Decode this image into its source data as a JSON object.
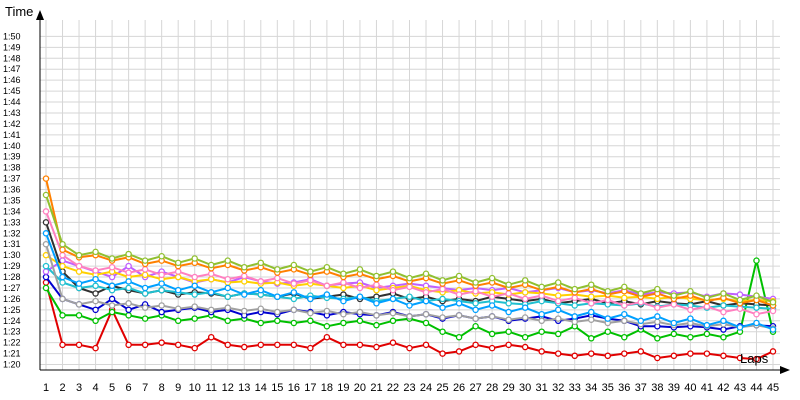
{
  "chart_data": {
    "type": "line",
    "ylabel": "Time",
    "xlabel": "Laps",
    "x_categories": [
      "1",
      "2",
      "3",
      "4",
      "5",
      "6",
      "7",
      "8",
      "9",
      "10",
      "11",
      "12",
      "13",
      "14",
      "15",
      "16",
      "17",
      "18",
      "19",
      "20",
      "21",
      "22",
      "23",
      "24",
      "25",
      "26",
      "27",
      "28",
      "29",
      "30",
      "31",
      "32",
      "33",
      "34",
      "35",
      "36",
      "37",
      "38",
      "39",
      "40",
      "41",
      "42",
      "43",
      "44",
      "45"
    ],
    "y_tick_labels": [
      "1:20",
      "1:21",
      "1:22",
      "1:23",
      "1:24",
      "1:25",
      "1:26",
      "1:27",
      "1:28",
      "1:29",
      "1:30",
      "1:31",
      "1:32",
      "1:33",
      "1:34",
      "1:35",
      "1:36",
      "1:37",
      "1:38",
      "1:39",
      "1:40",
      "1:41",
      "1:42",
      "1:43",
      "1:44",
      "1:45",
      "1:46",
      "1:47",
      "1:48",
      "1:49",
      "1:50"
    ],
    "y_unit": "seconds",
    "ylim": [
      79.5,
      111.5
    ],
    "xlim": [
      1,
      45
    ],
    "grid": true,
    "legend": "none",
    "series": [
      {
        "color": "#e00000",
        "values": [
          87.5,
          81.8,
          81.8,
          81.5,
          85,
          81.8,
          81.8,
          82,
          81.8,
          81.5,
          82.5,
          81.8,
          81.6,
          81.8,
          81.8,
          81.8,
          81.5,
          82.5,
          81.8,
          81.8,
          81.6,
          82,
          81.5,
          81.8,
          81,
          81.2,
          81.8,
          81.5,
          81.8,
          81.6,
          81.2,
          81,
          80.8,
          81,
          80.8,
          81,
          81.2,
          80.6,
          80.8,
          81,
          81,
          80.8,
          80.6,
          80.5,
          81.2
        ]
      },
      {
        "color": "#00c000",
        "values": [
          87,
          84.5,
          84.5,
          84,
          84.8,
          84.5,
          84.2,
          84.5,
          84,
          84.2,
          84.5,
          84,
          84.2,
          83.8,
          84,
          83.8,
          84,
          83.5,
          83.8,
          84,
          83.6,
          84,
          84.2,
          83.8,
          83,
          82.5,
          83.5,
          82.8,
          83,
          82.5,
          83,
          82.8,
          83.5,
          82.4,
          83,
          82.5,
          83.2,
          82.4,
          82.8,
          82.5,
          82.8,
          82.5,
          83,
          89.5,
          83
        ]
      },
      {
        "color": "#0000d0",
        "values": [
          88,
          86,
          85.5,
          85,
          86,
          85,
          85.5,
          84.8,
          85,
          85.2,
          84.8,
          85,
          84.5,
          84.8,
          84.6,
          85,
          84.8,
          84.5,
          84.8,
          84.6,
          84.5,
          84.8,
          84.4,
          84.6,
          84.2,
          84.5,
          84.2,
          84.4,
          84,
          84.2,
          84.4,
          84,
          84.2,
          84.5,
          84.2,
          84,
          83.5,
          83.5,
          83.4,
          83.5,
          83.4,
          83.2,
          83.5,
          83.6,
          83.5
        ]
      },
      {
        "color": "#c060ff",
        "values": [
          88.5,
          89.5,
          89,
          88.5,
          88,
          89,
          88,
          88.5,
          88,
          87.5,
          87.8,
          87.5,
          88,
          87.6,
          87.4,
          87.5,
          87.8,
          87.2,
          87.4,
          87.5,
          87,
          87.2,
          87.4,
          87.2,
          87,
          86.8,
          87,
          86.8,
          87,
          86.6,
          86.8,
          87,
          86.6,
          86.8,
          86.5,
          86.8,
          86.4,
          86.6,
          86.5,
          86.6,
          86.2,
          86.5,
          86.4,
          86.2,
          86
        ]
      },
      {
        "color": "#303030",
        "values": [
          93,
          88.5,
          87,
          86.5,
          87.2,
          86.8,
          86.5,
          86.8,
          86.4,
          86.6,
          86.5,
          86.2,
          86.5,
          86.4,
          86.2,
          86.5,
          86,
          86.2,
          86.4,
          86,
          86.2,
          86.5,
          86,
          86.2,
          85.8,
          86,
          85.8,
          86.2,
          86,
          85.8,
          86,
          85.6,
          85.8,
          86,
          85.6,
          85.8,
          85.5,
          85.8,
          85.6,
          85.5,
          85.8,
          85.4,
          85.6,
          85.5,
          85.4
        ]
      },
      {
        "color": "#20c0d0",
        "values": [
          89,
          87.5,
          87,
          87.2,
          86.8,
          87,
          86.5,
          86.8,
          86.6,
          86.4,
          86.6,
          86.2,
          86.5,
          86.4,
          86.2,
          86,
          86.3,
          86.1,
          86,
          86.2,
          85.8,
          86,
          86.2,
          85.8,
          86,
          85.8,
          85.6,
          85.8,
          85.6,
          85.5,
          85.8,
          85.6,
          85.4,
          85.6,
          85.5,
          85.4,
          85.6,
          85.3,
          85.5,
          85.4,
          85.2,
          85.4,
          85.3,
          85.2,
          85.1
        ]
      },
      {
        "color": "#ffd000",
        "values": [
          90,
          89,
          88.5,
          88.2,
          88.5,
          88,
          88.2,
          87.8,
          88,
          87.6,
          87.8,
          87.5,
          87.6,
          87.4,
          87.5,
          87.2,
          87.4,
          87.2,
          87,
          87.2,
          86.8,
          87,
          87.2,
          86.8,
          86.6,
          86.8,
          86.5,
          86.6,
          86.4,
          86.6,
          86.5,
          86.3,
          86.4,
          86.2,
          86.3,
          86.1,
          86.2,
          86,
          86.2,
          86,
          85.9,
          86,
          85.8,
          85.9,
          85.8
        ]
      },
      {
        "color": "#a0a0a0",
        "values": [
          91,
          86,
          85.5,
          85.8,
          85.4,
          85.6,
          85.2,
          85.4,
          85.1,
          85.3,
          85,
          85.2,
          84.9,
          85.1,
          84.8,
          85,
          84.7,
          84.9,
          84.6,
          84.8,
          84.5,
          84.7,
          84.4,
          84.6,
          84.3,
          84.5,
          84.2,
          84.4,
          84.1,
          84.3,
          84,
          84.2,
          83.9,
          84.1,
          83.8,
          84,
          83.7,
          83.9,
          83.6,
          83.8,
          83.5,
          83.7,
          83.4,
          83.6,
          83.3
        ]
      },
      {
        "color": "#ff80c0",
        "values": [
          94,
          90,
          89,
          88.6,
          88.9,
          88.4,
          88.7,
          88.2,
          88.5,
          88,
          88.3,
          87.8,
          88.1,
          87.6,
          87.9,
          87.4,
          87.7,
          87.2,
          87.5,
          87,
          87.3,
          86.8,
          87.1,
          86.6,
          86.9,
          86.4,
          86.7,
          86.2,
          86.5,
          86,
          86.3,
          85.8,
          86.1,
          85.6,
          85.9,
          85.4,
          85.7,
          85.2,
          85.5,
          85,
          85.3,
          84.8,
          85.1,
          84.6,
          84.9
        ]
      },
      {
        "color": "#00a0ff",
        "values": [
          92,
          88,
          87.4,
          87.8,
          87.2,
          87.6,
          87,
          87.4,
          86.8,
          87.2,
          86.6,
          87,
          86.4,
          86.8,
          86.2,
          86.6,
          86,
          86.4,
          85.8,
          86.2,
          85.6,
          86,
          85.4,
          85.8,
          85.2,
          85.6,
          85,
          85.4,
          84.8,
          85.2,
          84.6,
          85,
          84.4,
          84.8,
          84.2,
          84.6,
          84,
          84.4,
          83.8,
          84.2,
          83.6,
          84,
          83.4,
          83.8,
          83.2
        ]
      },
      {
        "color": "#ff8000",
        "values": [
          97,
          90.5,
          89.8,
          90,
          89.5,
          89.8,
          89.2,
          89.5,
          89,
          89.3,
          88.8,
          89.1,
          88.6,
          88.9,
          88.4,
          88.7,
          88.2,
          88.5,
          88,
          88.3,
          87.8,
          88.1,
          87.6,
          87.9,
          87.4,
          87.7,
          87.2,
          87.5,
          87,
          87.3,
          86.8,
          87.1,
          86.6,
          86.9,
          86.4,
          86.7,
          86.2,
          86.5,
          86,
          86.3,
          85.8,
          86.1,
          85.6,
          85.9,
          85.4
        ]
      },
      {
        "color": "#90c030",
        "values": [
          95.5,
          91,
          90,
          90.3,
          89.7,
          90.1,
          89.5,
          89.9,
          89.3,
          89.7,
          89.1,
          89.5,
          88.9,
          89.3,
          88.7,
          89.1,
          88.5,
          88.9,
          88.3,
          88.7,
          88.1,
          88.5,
          87.9,
          88.3,
          87.7,
          88.1,
          87.5,
          87.9,
          87.3,
          87.7,
          87.1,
          87.5,
          86.9,
          87.3,
          86.7,
          87.1,
          86.5,
          86.9,
          86.3,
          86.7,
          86.1,
          86.5,
          85.9,
          86.3,
          85.7
        ]
      }
    ]
  }
}
